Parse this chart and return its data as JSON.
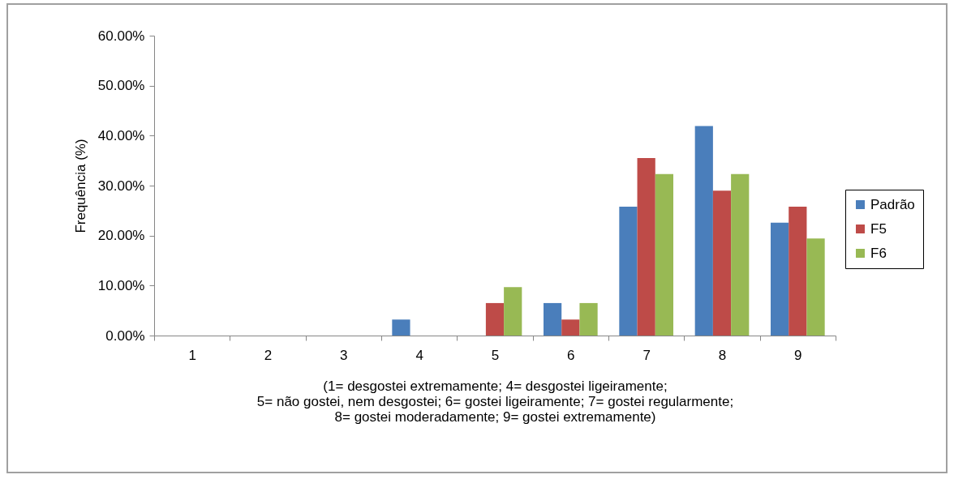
{
  "chart_data": {
    "type": "bar",
    "ylabel": "Frequência (%)",
    "xlabel": "(1= desgostei extremamente; 4= desgostei ligeiramente;\n5= não gostei, nem desgostei; 6= gostei ligeiramente; 7= gostei regularmente;\n8= gostei moderadamente; 9= gostei extremamente)",
    "categories": [
      "1",
      "2",
      "3",
      "4",
      "5",
      "6",
      "7",
      "8",
      "9"
    ],
    "series": [
      {
        "name": "Padrão",
        "color": "#4a7ebb",
        "values": [
          0,
          0,
          0,
          3.2,
          0,
          6.5,
          25.8,
          41.9,
          22.6
        ]
      },
      {
        "name": "F5",
        "color": "#be4b48",
        "values": [
          0,
          0,
          0,
          0,
          6.5,
          3.2,
          35.5,
          29.0,
          25.8
        ]
      },
      {
        "name": "F6",
        "color": "#98b954",
        "values": [
          0,
          0,
          0,
          0,
          9.7,
          6.5,
          32.3,
          32.3,
          19.4
        ]
      }
    ],
    "ylim": [
      0,
      60
    ],
    "yticks": [
      {
        "value": 0,
        "label": "0.00%"
      },
      {
        "value": 10,
        "label": "10.00%"
      },
      {
        "value": 20,
        "label": "20.00%"
      },
      {
        "value": 30,
        "label": "30.00%"
      },
      {
        "value": 40,
        "label": "40.00%"
      },
      {
        "value": 50,
        "label": "50.00%"
      },
      {
        "value": 60,
        "label": "60.00%"
      }
    ],
    "grid": false,
    "legend": "right"
  }
}
